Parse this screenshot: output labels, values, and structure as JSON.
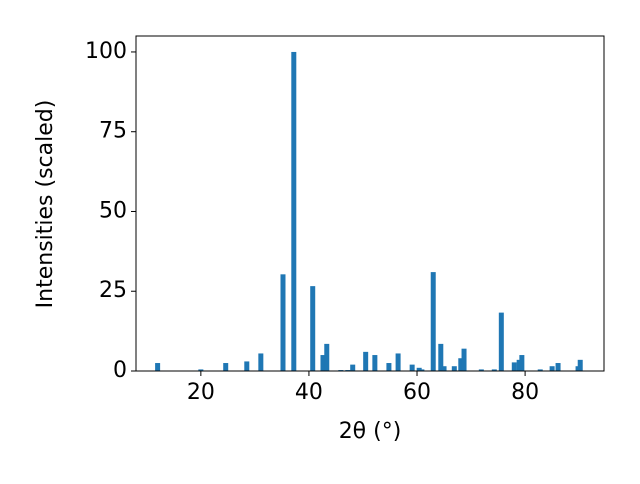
{
  "chart_data": {
    "type": "bar",
    "xlabel": "2θ (°)",
    "ylabel": "Intensities (scaled)",
    "x": [
      12.0,
      20.0,
      24.6,
      28.5,
      31.1,
      35.2,
      37.2,
      40.7,
      42.6,
      43.3,
      45.9,
      47.2,
      48.1,
      50.5,
      52.2,
      54.8,
      56.5,
      59.1,
      60.4,
      60.9,
      63.0,
      64.4,
      65.0,
      66.9,
      68.1,
      68.7,
      71.9,
      74.3,
      75.6,
      78.0,
      78.9,
      79.4,
      82.8,
      85.0,
      86.1,
      89.8,
      90.2
    ],
    "values": [
      2.5,
      0.5,
      2.5,
      3,
      5.5,
      30.3,
      100,
      26.6,
      5,
      8.5,
      0.3,
      0.3,
      2,
      6,
      5,
      2.5,
      5.5,
      2,
      1,
      0.5,
      31,
      8.5,
      1.5,
      1.5,
      4,
      7,
      0.5,
      0.5,
      18.3,
      2.7,
      3.5,
      5,
      0.5,
      1.5,
      2.5,
      1.5,
      3.5
    ],
    "color": "#1f77b4",
    "xlim": [
      8,
      94.6
    ],
    "xticks": [
      20,
      40,
      60,
      80
    ],
    "ylim": [
      0,
      105
    ],
    "yticks": [
      0,
      25,
      50,
      75,
      100
    ]
  }
}
